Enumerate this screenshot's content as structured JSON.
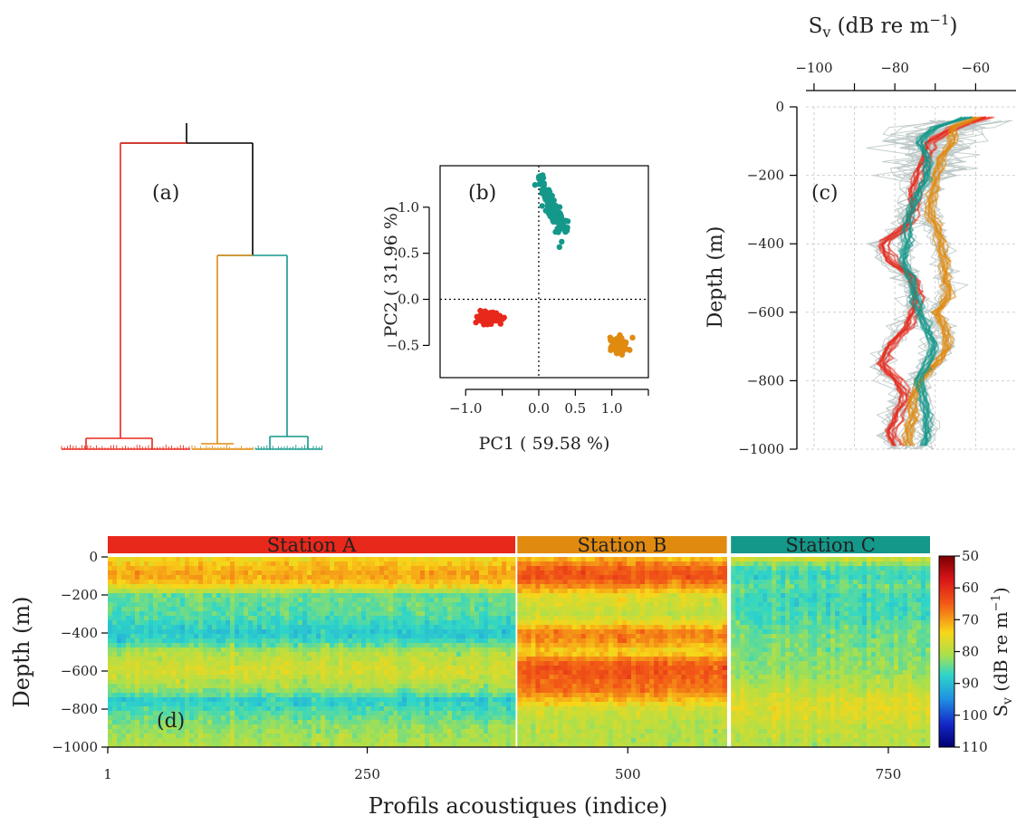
{
  "colors": {
    "station_a": "#e8281b",
    "station_b": "#e08a10",
    "station_c": "#14988a",
    "grey": "#b9c6c4",
    "axis": "#000000"
  },
  "panels": {
    "a": "(a)",
    "b": "(b)",
    "c": "(c)",
    "d": "(d)"
  },
  "chart_data": [
    {
      "id": "a",
      "type": "dendrogram",
      "groups": [
        "Station A",
        "Station B",
        "Station C"
      ],
      "split_order": [
        [
          "Station A"
        ],
        [
          "Station B",
          "Station C"
        ]
      ]
    },
    {
      "id": "b",
      "type": "scatter",
      "xlabel": "PC1 ( 59.58  %)",
      "ylabel": "PC2 ( 31.96  %)",
      "xlim": [
        -1.35,
        1.5
      ],
      "ylim": [
        -0.85,
        1.45
      ],
      "xticks": [
        -1.0,
        0.0,
        0.5,
        1.0
      ],
      "xtick_labels": [
        "−1.0",
        "0.0",
        "0.5",
        "1.0"
      ],
      "xticks_unlabeled": [
        -0.5,
        1.5
      ],
      "yticks": [
        -0.5,
        0.0,
        0.5,
        1.0
      ],
      "ytick_labels": [
        "−0.5",
        "0.0",
        "0.5",
        "1.0"
      ],
      "reference_lines": {
        "x": 0,
        "y": 0
      },
      "clusters": [
        {
          "group": "Station A",
          "center": [
            -0.68,
            -0.2
          ],
          "spread": [
            0.13,
            0.05
          ]
        },
        {
          "group": "Station B",
          "center": [
            1.1,
            -0.5
          ],
          "spread": [
            0.08,
            0.07
          ]
        },
        {
          "group": "Station C",
          "center": [
            0.25,
            1.0
          ],
          "spread": [
            0.09,
            0.17
          ]
        }
      ]
    },
    {
      "id": "c",
      "type": "line",
      "xlabel_top": "Sv (dB re m−1)",
      "ylabel": "Depth (m)",
      "xlim": [
        -102,
        -50
      ],
      "ylim": [
        -1000,
        0
      ],
      "xticks": [
        -100,
        -80,
        -60
      ],
      "xtick_labels": [
        "−100",
        "−80",
        "−60"
      ],
      "xticks_unlabeled": [
        -90,
        -70
      ],
      "yticks": [
        0,
        -200,
        -400,
        -600,
        -800,
        -1000
      ],
      "ytick_labels": [
        "0",
        "−200",
        "−400",
        "−600",
        "−800",
        "−1000"
      ],
      "grid": true,
      "series": [
        {
          "group": "Station A",
          "depth": [
            -30,
            -60,
            -100,
            -150,
            -200,
            -250,
            -300,
            -350,
            -400,
            -450,
            -500,
            -550,
            -600,
            -650,
            -700,
            -750,
            -800,
            -850,
            -900,
            -950,
            -1000
          ],
          "sv": [
            -58,
            -66,
            -72,
            -73,
            -75,
            -76,
            -76,
            -78,
            -84,
            -82,
            -76,
            -75,
            -76,
            -78,
            -82,
            -84,
            -80,
            -78,
            -80,
            -82,
            -80
          ]
        },
        {
          "group": "Station B",
          "depth": [
            -30,
            -60,
            -100,
            -150,
            -200,
            -250,
            -300,
            -350,
            -400,
            -450,
            -500,
            -550,
            -600,
            -650,
            -700,
            -750,
            -800,
            -850,
            -900,
            -950,
            -1000
          ],
          "sv": [
            -60,
            -66,
            -66,
            -69,
            -70,
            -71,
            -72,
            -70,
            -69,
            -68,
            -68,
            -67,
            -70,
            -68,
            -67,
            -70,
            -74,
            -76,
            -76,
            -77,
            -77
          ]
        },
        {
          "group": "Station C",
          "depth": [
            -30,
            -60,
            -100,
            -150,
            -200,
            -250,
            -300,
            -350,
            -400,
            -450,
            -500,
            -550,
            -600,
            -650,
            -700,
            -750,
            -800,
            -850,
            -900,
            -950,
            -1000
          ],
          "sv": [
            -62,
            -70,
            -74,
            -72,
            -72,
            -74,
            -76,
            -77,
            -77,
            -78,
            -76,
            -75,
            -74,
            -72,
            -70,
            -72,
            -74,
            -73,
            -72,
            -72,
            -73
          ]
        }
      ]
    },
    {
      "id": "d",
      "type": "heatmap",
      "xlabel": "Profils acoustiques (indice)",
      "ylabel": "Depth (m)",
      "xlim": [
        1,
        790
      ],
      "ylim": [
        -1000,
        0
      ],
      "xticks": [
        1,
        250,
        500,
        750
      ],
      "xtick_labels": [
        "1",
        "250",
        "500",
        "750"
      ],
      "yticks": [
        0,
        -200,
        -400,
        -600,
        -800,
        -1000
      ],
      "ytick_labels": [
        "0",
        "−200",
        "−400",
        "−600",
        "−800",
        "−1000"
      ],
      "stations": [
        {
          "label": "Station A",
          "range": [
            1,
            392
          ]
        },
        {
          "label": "Station B",
          "range": [
            394,
            595
          ]
        },
        {
          "label": "Station C",
          "range": [
            599,
            790
          ]
        }
      ],
      "colorbar": {
        "label": "Sv (dB re m−1)",
        "ticks": [
          -50,
          -60,
          -70,
          -80,
          -90,
          -100,
          -110
        ],
        "tick_labels": [
          "50",
          "60",
          "70",
          "80",
          "90",
          "100",
          "110"
        ],
        "range": [
          -110,
          -50
        ]
      },
      "profiles": {
        "Station A": {
          "depth": [
            0,
            -50,
            -100,
            -150,
            -200,
            -300,
            -400,
            -450,
            -500,
            -600,
            -700,
            -750,
            -800,
            -900,
            -1000
          ],
          "sv": [
            -75,
            -72,
            -70,
            -74,
            -84,
            -85,
            -89,
            -86,
            -80,
            -77,
            -82,
            -88,
            -86,
            -82,
            -80
          ]
        },
        "Station B": {
          "depth": [
            0,
            -50,
            -100,
            -150,
            -200,
            -300,
            -350,
            -400,
            -450,
            -500,
            -550,
            -600,
            -650,
            -700,
            -750,
            -800,
            -900,
            -1000
          ],
          "sv": [
            -74,
            -66,
            -64,
            -68,
            -76,
            -79,
            -75,
            -67,
            -70,
            -75,
            -66,
            -64,
            -66,
            -67,
            -72,
            -78,
            -80,
            -80
          ]
        },
        "Station C": {
          "depth": [
            0,
            -50,
            -100,
            -150,
            -200,
            -300,
            -400,
            -500,
            -600,
            -700,
            -750,
            -800,
            -900,
            -1000
          ],
          "sv": [
            -76,
            -85,
            -87,
            -84,
            -86,
            -86,
            -84,
            -83,
            -82,
            -79,
            -77,
            -76,
            -79,
            -80
          ]
        }
      }
    }
  ]
}
